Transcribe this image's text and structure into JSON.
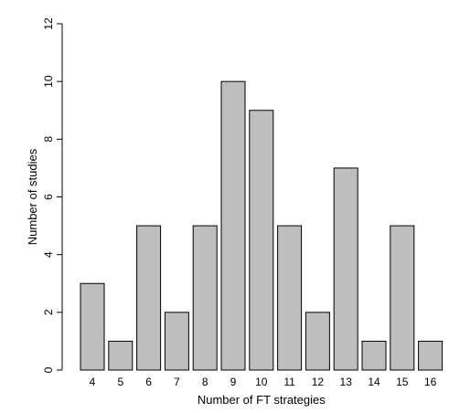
{
  "chart_data": {
    "type": "bar",
    "title": "",
    "xlabel": "Number of FT strategies",
    "ylabel": "Number of studies",
    "categories": [
      "4",
      "5",
      "6",
      "7",
      "8",
      "9",
      "10",
      "11",
      "12",
      "13",
      "14",
      "15",
      "16"
    ],
    "values": [
      3,
      1,
      5,
      2,
      5,
      10,
      9,
      5,
      2,
      7,
      1,
      5,
      1
    ],
    "ylim": [
      0,
      12
    ],
    "yticks": [
      0,
      2,
      4,
      6,
      8,
      10,
      12
    ],
    "grid": false,
    "legend": "none",
    "bar_color": "#bebebe",
    "edge_color": "#000000"
  }
}
